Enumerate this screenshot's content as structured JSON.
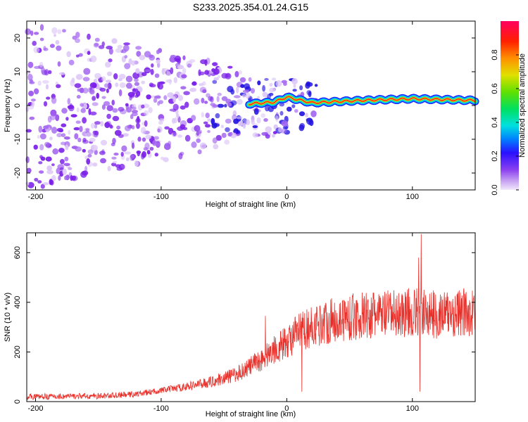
{
  "title": "S233.2025.354.01.24.G15",
  "chart_data": [
    {
      "type": "heatmap",
      "name": "spectrogram",
      "xlabel": "Height of straight line (km)",
      "ylabel": "Frequency (Hz)",
      "xlim": [
        -207,
        150
      ],
      "ylim": [
        -25,
        25
      ],
      "x_ticks": [
        -200,
        -100,
        0,
        100
      ],
      "y_ticks": [
        -20,
        -10,
        0,
        10,
        20
      ],
      "carrier_track": [
        {
          "x": -30,
          "y": 0.5
        },
        {
          "x": -10,
          "y": 1.0
        },
        {
          "x": 0,
          "y": 2.5
        },
        {
          "x": 20,
          "y": 0.8
        },
        {
          "x": 60,
          "y": 1.5
        },
        {
          "x": 100,
          "y": 2.0
        },
        {
          "x": 150,
          "y": 1.5
        }
      ],
      "colorbar": {
        "label": "Normalized spectral amplitude",
        "range": [
          0,
          1
        ],
        "ticks": [
          0.0,
          0.2,
          0.4,
          0.6,
          0.8
        ],
        "tick_labels": [
          "0.0",
          "0.2",
          "0.4",
          "0.6",
          "0.8"
        ]
      }
    },
    {
      "type": "line",
      "name": "snr",
      "xlabel": "Height of straight line (km)",
      "ylabel": "SNR (10 * v/v)",
      "xlim": [
        -207,
        150
      ],
      "ylim": [
        0,
        680
      ],
      "x_ticks": [
        -200,
        -100,
        0,
        100
      ],
      "y_ticks": [
        0,
        200,
        400,
        600
      ],
      "color": "#e8302a",
      "series_trend": [
        {
          "x": -207,
          "y": 20
        },
        {
          "x": -150,
          "y": 22
        },
        {
          "x": -120,
          "y": 30
        },
        {
          "x": -100,
          "y": 45
        },
        {
          "x": -80,
          "y": 60
        },
        {
          "x": -60,
          "y": 80
        },
        {
          "x": -40,
          "y": 110
        },
        {
          "x": -30,
          "y": 140
        },
        {
          "x": -20,
          "y": 170
        },
        {
          "x": -10,
          "y": 210
        },
        {
          "x": 0,
          "y": 240
        },
        {
          "x": 10,
          "y": 280
        },
        {
          "x": 20,
          "y": 300
        },
        {
          "x": 30,
          "y": 320
        },
        {
          "x": 50,
          "y": 340
        },
        {
          "x": 80,
          "y": 350
        },
        {
          "x": 100,
          "y": 360
        },
        {
          "x": 120,
          "y": 350
        },
        {
          "x": 150,
          "y": 360
        }
      ],
      "spikes": [
        {
          "x": -17,
          "y": 345
        },
        {
          "x": 12,
          "y": 40
        },
        {
          "x": 105,
          "y": 580
        },
        {
          "x": 107,
          "y": 675
        },
        {
          "x": 106,
          "y": 40
        }
      ]
    }
  ]
}
